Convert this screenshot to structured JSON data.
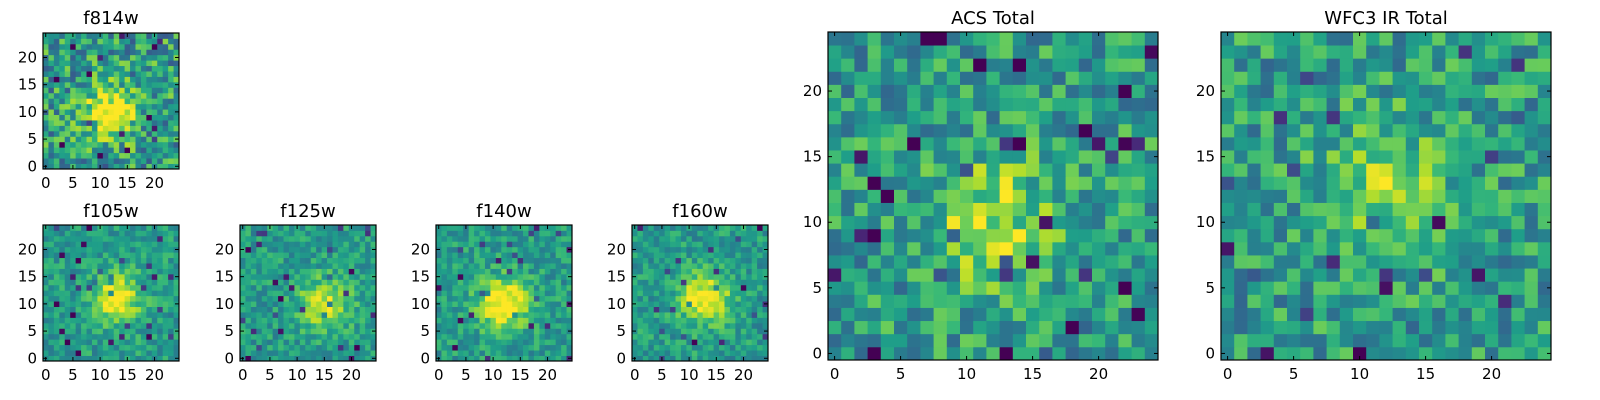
{
  "chart_data": [
    {
      "type": "heatmap",
      "title": "f814w",
      "colormap": "viridis",
      "grid_size": [
        25,
        25
      ],
      "peak_center": [
        12,
        10
      ],
      "peak_strength": 0.55,
      "noise": 0.55,
      "seed": 11,
      "x_ticks": [
        "0",
        "5",
        "10",
        "15",
        "20"
      ],
      "y_ticks": [
        "0",
        "5",
        "10",
        "15",
        "20"
      ]
    },
    {
      "type": "heatmap",
      "title": "f105w",
      "colormap": "viridis",
      "grid_size": [
        25,
        25
      ],
      "peak_center": [
        13,
        11
      ],
      "peak_strength": 0.45,
      "noise": 0.3,
      "seed": 23,
      "x_ticks": [
        "0",
        "5",
        "10",
        "15",
        "20"
      ],
      "y_ticks": [
        "0",
        "5",
        "10",
        "15",
        "20"
      ]
    },
    {
      "type": "heatmap",
      "title": "f125w",
      "colormap": "viridis",
      "grid_size": [
        25,
        25
      ],
      "peak_center": [
        15,
        10
      ],
      "peak_strength": 0.4,
      "noise": 0.3,
      "seed": 37,
      "x_ticks": [
        "0",
        "5",
        "10",
        "15",
        "20"
      ],
      "y_ticks": [
        "0",
        "5",
        "10",
        "15",
        "20"
      ]
    },
    {
      "type": "heatmap",
      "title": "f140w",
      "colormap": "viridis",
      "grid_size": [
        25,
        25
      ],
      "peak_center": [
        12,
        10
      ],
      "peak_strength": 0.55,
      "noise": 0.3,
      "seed": 41,
      "x_ticks": [
        "0",
        "5",
        "10",
        "15",
        "20"
      ],
      "y_ticks": [
        "0",
        "5",
        "10",
        "15",
        "20"
      ]
    },
    {
      "type": "heatmap",
      "title": "f160w",
      "colormap": "viridis",
      "grid_size": [
        25,
        25
      ],
      "peak_center": [
        13,
        11
      ],
      "peak_strength": 0.5,
      "noise": 0.3,
      "seed": 53,
      "x_ticks": [
        "0",
        "5",
        "10",
        "15",
        "20"
      ],
      "y_ticks": [
        "0",
        "5",
        "10",
        "15",
        "20"
      ]
    },
    {
      "type": "heatmap",
      "title": "ACS Total",
      "colormap": "viridis",
      "grid_size": [
        25,
        25
      ],
      "peak_center": [
        12,
        10
      ],
      "peak_strength": 0.35,
      "noise": 0.45,
      "seed": 67,
      "x_ticks": [
        "0",
        "5",
        "10",
        "15",
        "20"
      ],
      "y_ticks": [
        "0",
        "5",
        "10",
        "15",
        "20"
      ]
    },
    {
      "type": "heatmap",
      "title": "WFC3 IR Total",
      "colormap": "viridis",
      "grid_size": [
        25,
        25
      ],
      "peak_center": [
        12,
        13
      ],
      "peak_strength": 0.3,
      "noise": 0.45,
      "seed": 79,
      "x_ticks": [
        "0",
        "5",
        "10",
        "15",
        "20"
      ],
      "y_ticks": [
        "0",
        "5",
        "10",
        "15",
        "20"
      ]
    }
  ]
}
